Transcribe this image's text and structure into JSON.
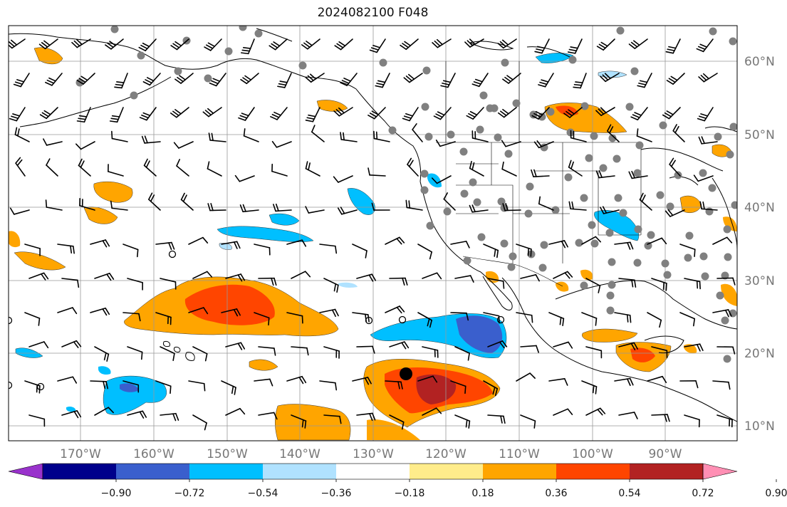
{
  "title": "2024082100 F048",
  "longitude_labels": [
    "170°W",
    "160°W",
    "150°W",
    "140°W",
    "130°W",
    "120°W",
    "110°W",
    "100°W",
    "90°W"
  ],
  "latitude_labels": [
    "60°N",
    "50°N",
    "40°N",
    "30°N",
    "20°N",
    "10°N"
  ],
  "colorbar": {
    "colors": [
      "#9932cc",
      "#00008b",
      "#3a5fcd",
      "#00bfff",
      "#b0e2ff",
      "#ffffff",
      "#ffec8b",
      "#ffa500",
      "#ff4500",
      "#b22222",
      "#ff8fb4"
    ],
    "tick_labels": [
      "−0.90",
      "−0.72",
      "−0.54",
      "−0.36",
      "−0.18",
      "0.18",
      "0.36",
      "0.54",
      "0.72",
      "0.90"
    ]
  },
  "map_extent": {
    "lon_min": -180,
    "lon_max": -80,
    "lat_min": 8,
    "lat_max": 65
  }
}
